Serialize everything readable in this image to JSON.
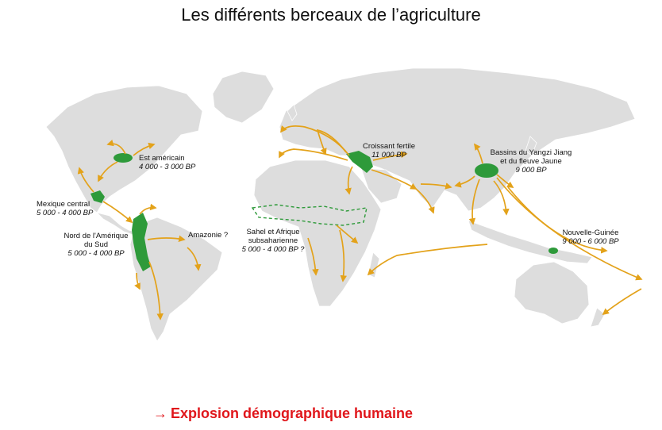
{
  "title": "Les différents berceaux de l’agriculture",
  "colors": {
    "land": "#dddddd",
    "cradle": "#2e9a3a",
    "route": "#e3a21a",
    "emphasis": "#e0161b"
  },
  "regions": [
    {
      "name": "Est américain",
      "date": "4 000 - 3 000 BP"
    },
    {
      "name": "Mexique central",
      "date": "5 000 - 4 000 BP"
    },
    {
      "name": "Nord de l'Amérique du Sud",
      "name_line1": "Nord de l'Amérique",
      "name_line2": "du Sud",
      "date": "5 000 - 4 000 BP"
    },
    {
      "name": "Amazonie ?",
      "date": ""
    },
    {
      "name": "Sahel et Afrique subsaharienne",
      "name_line1": "Sahel et Afrique",
      "name_line2": "subsaharienne",
      "date": "5 000  - 4 000 BP ?"
    },
    {
      "name": "Croissant fertile",
      "date": "11 000 BP"
    },
    {
      "name": "Bassins du Yangzi Jiang et du fleuve Jaune",
      "name_line1": "Bassins du Yangzi Jiang",
      "name_line2": "et du fleuve Jaune",
      "date": "9 000 BP"
    },
    {
      "name": "Nouvelle-Guinée",
      "date": "9 000  - 6 000 BP"
    }
  ],
  "footer": {
    "arrow": "→",
    "text": "Explosion démographique humaine"
  }
}
